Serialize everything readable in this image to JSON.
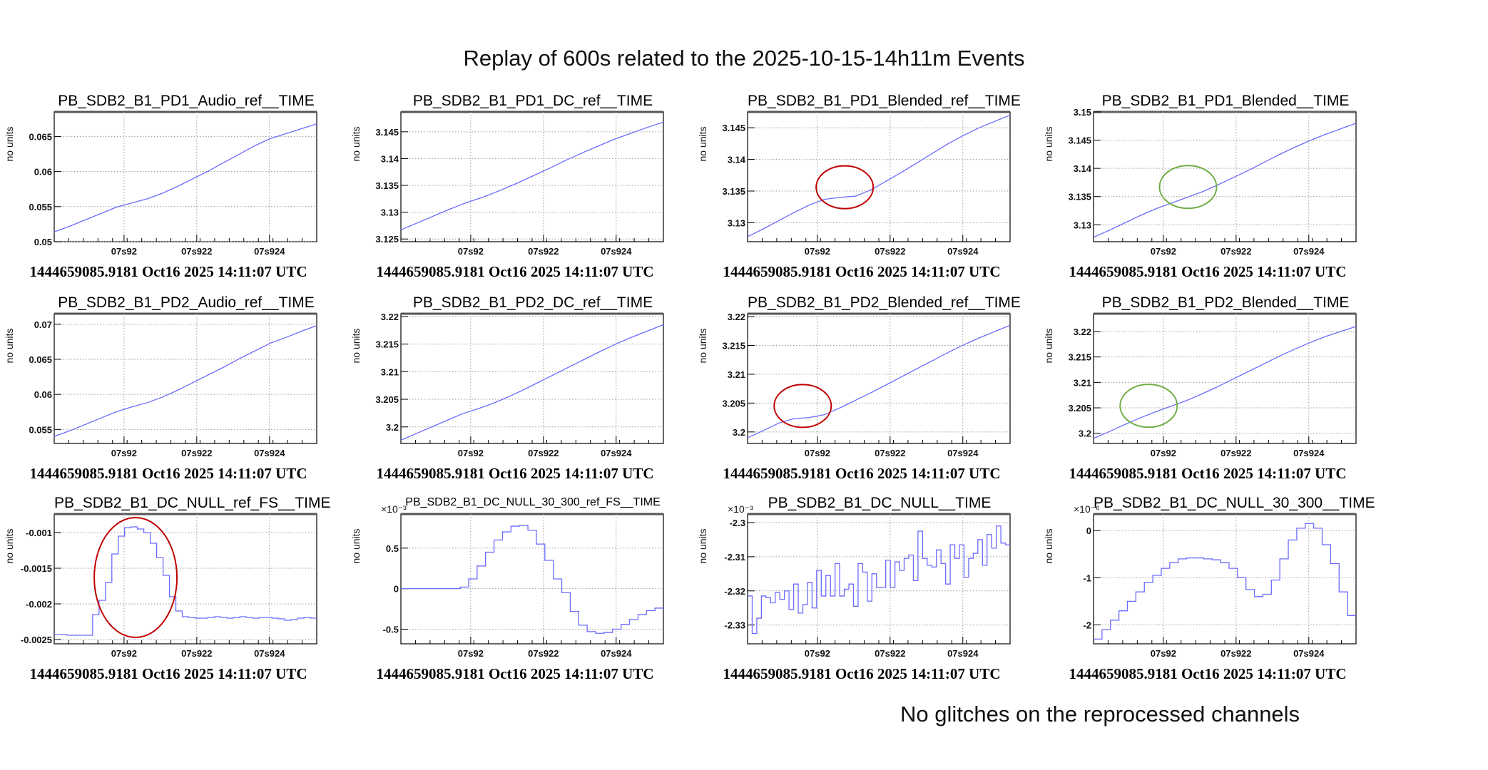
{
  "title": "Replay of 600s related to the 2025-10-15-14h11m Events",
  "footer": "No glitches on the reprocessed channels",
  "colors": {
    "series": "#6b6bff",
    "grid": "#9a9a9a",
    "red_circle": "#c00000",
    "green_circle": "#70ad47"
  },
  "chart_data": [
    {
      "type": "line",
      "title": "PB_SDB2_B1_PD1_Audio_ref__TIME",
      "ylabel": "no units",
      "timestamp": "1444659085.9181 Oct16 2025 14:11:07 UTC",
      "multiplier": "",
      "xlim": [
        0,
        1
      ],
      "xticks": [
        0.266,
        0.543,
        0.82
      ],
      "xticklabels": [
        "07s92",
        "07s922",
        "07s924"
      ],
      "ylim": [
        0.05,
        0.0685
      ],
      "yticks": [
        0.05,
        0.055,
        0.06,
        0.065
      ],
      "yticklabels": [
        "0.05",
        "0.055",
        "0.06",
        "0.065"
      ],
      "values": [
        0.0514,
        0.0522,
        0.0531,
        0.054,
        0.0549,
        0.0555,
        0.0561,
        0.0569,
        0.0579,
        0.059,
        0.0601,
        0.0613,
        0.0625,
        0.0637,
        0.0647,
        0.0654,
        0.0661,
        0.0668
      ],
      "annotations": []
    },
    {
      "type": "line",
      "title": "PB_SDB2_B1_PD1_DC_ref__TIME",
      "ylabel": "no units",
      "timestamp": "1444659085.9181 Oct16 2025 14:11:07 UTC",
      "multiplier": "",
      "xlim": [
        0,
        1
      ],
      "xticks": [
        0.266,
        0.543,
        0.82
      ],
      "xticklabels": [
        "07s92",
        "07s922",
        "07s924"
      ],
      "ylim": [
        3.1245,
        3.1487
      ],
      "yticks": [
        3.125,
        3.13,
        3.135,
        3.14,
        3.145
      ],
      "yticklabels": [
        "3.125",
        "3.13",
        "3.135",
        "3.14",
        "3.145"
      ],
      "values": [
        3.1267,
        3.128,
        3.1293,
        3.1306,
        3.1318,
        3.1328,
        3.134,
        3.1353,
        3.1367,
        3.1381,
        3.1396,
        3.141,
        3.1423,
        3.1436,
        3.1447,
        3.1458,
        3.1468
      ],
      "annotations": []
    },
    {
      "type": "line",
      "title": "PB_SDB2_B1_PD1_Blended_ref__TIME",
      "ylabel": "no units",
      "timestamp": "1444659085.9181 Oct16 2025 14:11:07 UTC",
      "multiplier": "",
      "xlim": [
        0,
        1
      ],
      "xticks": [
        0.266,
        0.543,
        0.82
      ],
      "xticklabels": [
        "07s92",
        "07s922",
        "07s924"
      ],
      "ylim": [
        3.127,
        3.1475
      ],
      "yticks": [
        3.13,
        3.135,
        3.14,
        3.145
      ],
      "yticklabels": [
        "3.13",
        "3.135",
        "3.14",
        "3.145"
      ],
      "values": [
        3.1278,
        3.129,
        3.1303,
        3.1316,
        3.1328,
        3.1337,
        3.134,
        3.1342,
        3.1352,
        3.1366,
        3.138,
        3.1395,
        3.141,
        3.1425,
        3.1438,
        3.145,
        3.146,
        3.147
      ],
      "annotations": [
        {
          "shape": "circle",
          "color": "red",
          "x": 0.37,
          "y": 3.1356
        }
      ]
    },
    {
      "type": "line",
      "title": "PB_SDB2_B1_PD1_Blended__TIME",
      "ylabel": "no units",
      "timestamp": "1444659085.9181 Oct16 2025 14:11:07 UTC",
      "multiplier": "",
      "xlim": [
        0,
        1
      ],
      "xticks": [
        0.266,
        0.543,
        0.82
      ],
      "xticklabels": [
        "07s92",
        "07s922",
        "07s924"
      ],
      "ylim": [
        3.127,
        3.15
      ],
      "yticks": [
        3.13,
        3.135,
        3.14,
        3.145,
        3.15
      ],
      "yticklabels": [
        "3.13",
        "3.135",
        "3.14",
        "3.145",
        "3.15"
      ],
      "values": [
        3.1278,
        3.129,
        3.1303,
        3.1316,
        3.1328,
        3.1338,
        3.1348,
        3.1358,
        3.137,
        3.1383,
        3.1396,
        3.141,
        3.1424,
        3.1437,
        3.1449,
        3.146,
        3.147,
        3.148
      ],
      "annotations": [
        {
          "shape": "circle",
          "color": "green",
          "x": 0.36,
          "y": 3.1367
        }
      ]
    },
    {
      "type": "line",
      "title": "PB_SDB2_B1_PD2_Audio_ref__TIME",
      "ylabel": "no units",
      "timestamp": "1444659085.9181 Oct16 2025 14:11:07 UTC",
      "multiplier": "",
      "xlim": [
        0,
        1
      ],
      "xticks": [
        0.266,
        0.543,
        0.82
      ],
      "xticklabels": [
        "07s92",
        "07s922",
        "07s924"
      ],
      "ylim": [
        0.053,
        0.0715
      ],
      "yticks": [
        0.055,
        0.06,
        0.065,
        0.07
      ],
      "yticklabels": [
        "0.055",
        "0.06",
        "0.065",
        "0.07"
      ],
      "values": [
        0.054,
        0.0548,
        0.0557,
        0.0566,
        0.0575,
        0.0582,
        0.0588,
        0.0596,
        0.0606,
        0.0617,
        0.0628,
        0.0639,
        0.0651,
        0.0662,
        0.0673,
        0.0681,
        0.069,
        0.0698
      ],
      "annotations": []
    },
    {
      "type": "line",
      "title": "PB_SDB2_B1_PD2_DC_ref__TIME",
      "ylabel": "no units",
      "timestamp": "1444659085.9181 Oct16 2025 14:11:07 UTC",
      "multiplier": "",
      "xlim": [
        0,
        1
      ],
      "xticks": [
        0.266,
        0.543,
        0.82
      ],
      "xticklabels": [
        "07s92",
        "07s922",
        "07s924"
      ],
      "ylim": [
        3.197,
        3.2205
      ],
      "yticks": [
        3.2,
        3.205,
        3.21,
        3.215,
        3.22
      ],
      "yticklabels": [
        "3.2",
        "3.205",
        "3.21",
        "3.215",
        "3.22"
      ],
      "values": [
        3.1976,
        3.1988,
        3.2,
        3.2012,
        3.2024,
        3.2033,
        3.2043,
        3.2055,
        3.2068,
        3.2082,
        3.2096,
        3.211,
        3.2124,
        3.2138,
        3.2151,
        3.2163,
        3.2174,
        3.2185
      ],
      "annotations": []
    },
    {
      "type": "line",
      "title": "PB_SDB2_B1_PD2_Blended_ref__TIME",
      "ylabel": "no units",
      "timestamp": "1444659085.9181 Oct16 2025 14:11:07 UTC",
      "multiplier": "",
      "xlim": [
        0,
        1
      ],
      "xticks": [
        0.266,
        0.543,
        0.82
      ],
      "xticklabels": [
        "07s92",
        "07s922",
        "07s924"
      ],
      "ylim": [
        3.198,
        3.2205
      ],
      "yticks": [
        3.2,
        3.205,
        3.21,
        3.215,
        3.22
      ],
      "yticklabels": [
        "3.2",
        "3.205",
        "3.21",
        "3.215",
        "3.22"
      ],
      "values": [
        3.199,
        3.2002,
        3.2015,
        3.2023,
        3.2025,
        3.203,
        3.2042,
        3.2055,
        3.2068,
        3.2082,
        3.2096,
        3.211,
        3.2124,
        3.2138,
        3.2151,
        3.2163,
        3.2174,
        3.2185
      ],
      "annotations": [
        {
          "shape": "circle",
          "color": "red",
          "x": 0.21,
          "y": 3.2045
        }
      ]
    },
    {
      "type": "line",
      "title": "PB_SDB2_B1_PD2_Blended__TIME",
      "ylabel": "no units",
      "timestamp": "1444659085.9181 Oct16 2025 14:11:07 UTC",
      "multiplier": "",
      "xlim": [
        0,
        1
      ],
      "xticks": [
        0.266,
        0.543,
        0.82
      ],
      "xticklabels": [
        "07s92",
        "07s922",
        "07s924"
      ],
      "ylim": [
        3.198,
        3.2235
      ],
      "yticks": [
        3.2,
        3.205,
        3.21,
        3.215,
        3.22
      ],
      "yticklabels": [
        "3.2",
        "3.205",
        "3.21",
        "3.215",
        "3.22"
      ],
      "values": [
        3.199,
        3.2003,
        3.2017,
        3.203,
        3.2042,
        3.2053,
        3.2064,
        3.2077,
        3.2091,
        3.2106,
        3.2121,
        3.2136,
        3.2151,
        3.2165,
        3.2178,
        3.219,
        3.22,
        3.221
      ],
      "annotations": [
        {
          "shape": "circle",
          "color": "green",
          "x": 0.21,
          "y": 3.2054
        }
      ]
    },
    {
      "type": "line",
      "step": true,
      "title": "PB_SDB2_B1_DC_NULL_ref_FS__TIME",
      "ylabel": "no units",
      "timestamp": "1444659085.9181 Oct16 2025 14:11:07 UTC",
      "multiplier": "",
      "xlim": [
        0,
        1
      ],
      "xticks": [
        0.266,
        0.543,
        0.82
      ],
      "xticklabels": [
        "07s92",
        "07s922",
        "07s924"
      ],
      "ylim": [
        -0.00256,
        -0.00074
      ],
      "yticks": [
        -0.001,
        -0.0015,
        -0.002,
        -0.0025
      ],
      "yticklabels": [
        "-0.001",
        "-0.0015",
        "-0.002",
        "-0.0025"
      ],
      "values": [
        -0.00243,
        -0.00243,
        -0.00244,
        -0.00244,
        -0.00244,
        -0.00244,
        -0.00215,
        -0.00195,
        -0.0017,
        -0.0013,
        -0.00105,
        -0.00093,
        -0.00092,
        -0.00095,
        -0.001,
        -0.00115,
        -0.00135,
        -0.0016,
        -0.0019,
        -0.0021,
        -0.00218,
        -0.00219,
        -0.0022,
        -0.0022,
        -0.00219,
        -0.00218,
        -0.00219,
        -0.0022,
        -0.00219,
        -0.00218,
        -0.00219,
        -0.0022,
        -0.00219,
        -0.00219,
        -0.0022,
        -0.00221,
        -0.00223,
        -0.00222,
        -0.0022,
        -0.00219,
        -0.0022
      ],
      "annotations": [
        {
          "shape": "ellipse",
          "color": "red",
          "x": 0.31,
          "y": -0.00163
        }
      ]
    },
    {
      "type": "line",
      "step": true,
      "title": "PB_SDB2_B1_DC_NULL_30_300_ref_FS__TIME",
      "ylabel": "no units",
      "timestamp": "1444659085.9181 Oct16 2025 14:11:07 UTC",
      "multiplier": "×10⁻³",
      "xlim": [
        0,
        1
      ],
      "xticks": [
        0.266,
        0.543,
        0.82
      ],
      "xticklabels": [
        "07s92",
        "07s922",
        "07s924"
      ],
      "ylim": [
        -0.68,
        0.92
      ],
      "yticks": [
        -0.5,
        0,
        0.5
      ],
      "yticklabels": [
        "-0.5",
        "0",
        "0.5"
      ],
      "values": [
        0,
        0,
        0,
        0,
        0,
        0,
        0,
        0.02,
        0.12,
        0.28,
        0.45,
        0.6,
        0.7,
        0.77,
        0.78,
        0.72,
        0.55,
        0.35,
        0.12,
        -0.05,
        -0.28,
        -0.45,
        -0.53,
        -0.55,
        -0.54,
        -0.5,
        -0.44,
        -0.38,
        -0.32,
        -0.27,
        -0.24
      ],
      "annotations": []
    },
    {
      "type": "line",
      "step": true,
      "title": "PB_SDB2_B1_DC_NULL__TIME",
      "ylabel": "no units",
      "timestamp": "1444659085.9181 Oct16 2025 14:11:07 UTC",
      "multiplier": "×10⁻³",
      "xlim": [
        0,
        1
      ],
      "xticks": [
        0.266,
        0.543,
        0.82
      ],
      "xticklabels": [
        "07s92",
        "07s922",
        "07s924"
      ],
      "ylim": [
        -2.3355,
        -2.2975
      ],
      "yticks": [
        -2.3,
        -2.31,
        -2.32,
        -2.33
      ],
      "yticklabels": [
        "-2.3",
        "-2.31",
        "-2.32",
        "-2.33"
      ],
      "values": [
        -2.3215,
        -2.3325,
        -2.328,
        -2.3215,
        -2.322,
        -2.3235,
        -2.3205,
        -2.3225,
        -2.32,
        -2.3255,
        -2.318,
        -2.3265,
        -2.324,
        -2.3175,
        -2.325,
        -2.314,
        -2.3215,
        -2.3155,
        -2.3215,
        -2.312,
        -2.3215,
        -2.3195,
        -2.318,
        -2.3245,
        -2.312,
        -2.3145,
        -2.323,
        -2.315,
        -2.319,
        -2.319,
        -2.311,
        -2.319,
        -2.3115,
        -2.314,
        -2.3105,
        -2.3095,
        -2.317,
        -2.3025,
        -2.3105,
        -2.3125,
        -2.313,
        -2.308,
        -2.312,
        -2.318,
        -2.3065,
        -2.3105,
        -2.3065,
        -2.316,
        -2.3105,
        -2.309,
        -2.305,
        -2.3125,
        -2.3035,
        -2.3075,
        -2.301,
        -2.306,
        -2.3065
      ],
      "annotations": []
    },
    {
      "type": "line",
      "step": true,
      "title": "PB_SDB2_B1_DC_NULL_30_300__TIME",
      "ylabel": "no units",
      "timestamp": "1444659085.9181 Oct16 2025 14:11:07 UTC",
      "multiplier": "×10⁻⁶",
      "xlim": [
        0,
        1
      ],
      "xticks": [
        0.266,
        0.543,
        0.82
      ],
      "xticklabels": [
        "07s92",
        "07s922",
        "07s924"
      ],
      "ylim": [
        -2.4,
        0.35
      ],
      "yticks": [
        -2,
        -1,
        0
      ],
      "yticklabels": [
        "-2",
        "-1",
        "0"
      ],
      "values": [
        -2.3,
        -2.1,
        -1.9,
        -1.7,
        -1.5,
        -1.3,
        -1.1,
        -0.95,
        -0.8,
        -0.68,
        -0.6,
        -0.58,
        -0.58,
        -0.6,
        -0.62,
        -0.68,
        -0.8,
        -1.0,
        -1.25,
        -1.4,
        -1.35,
        -1.05,
        -0.6,
        -0.2,
        0.05,
        0.15,
        0.05,
        -0.3,
        -0.7,
        -1.3,
        -1.8
      ],
      "annotations": []
    }
  ]
}
